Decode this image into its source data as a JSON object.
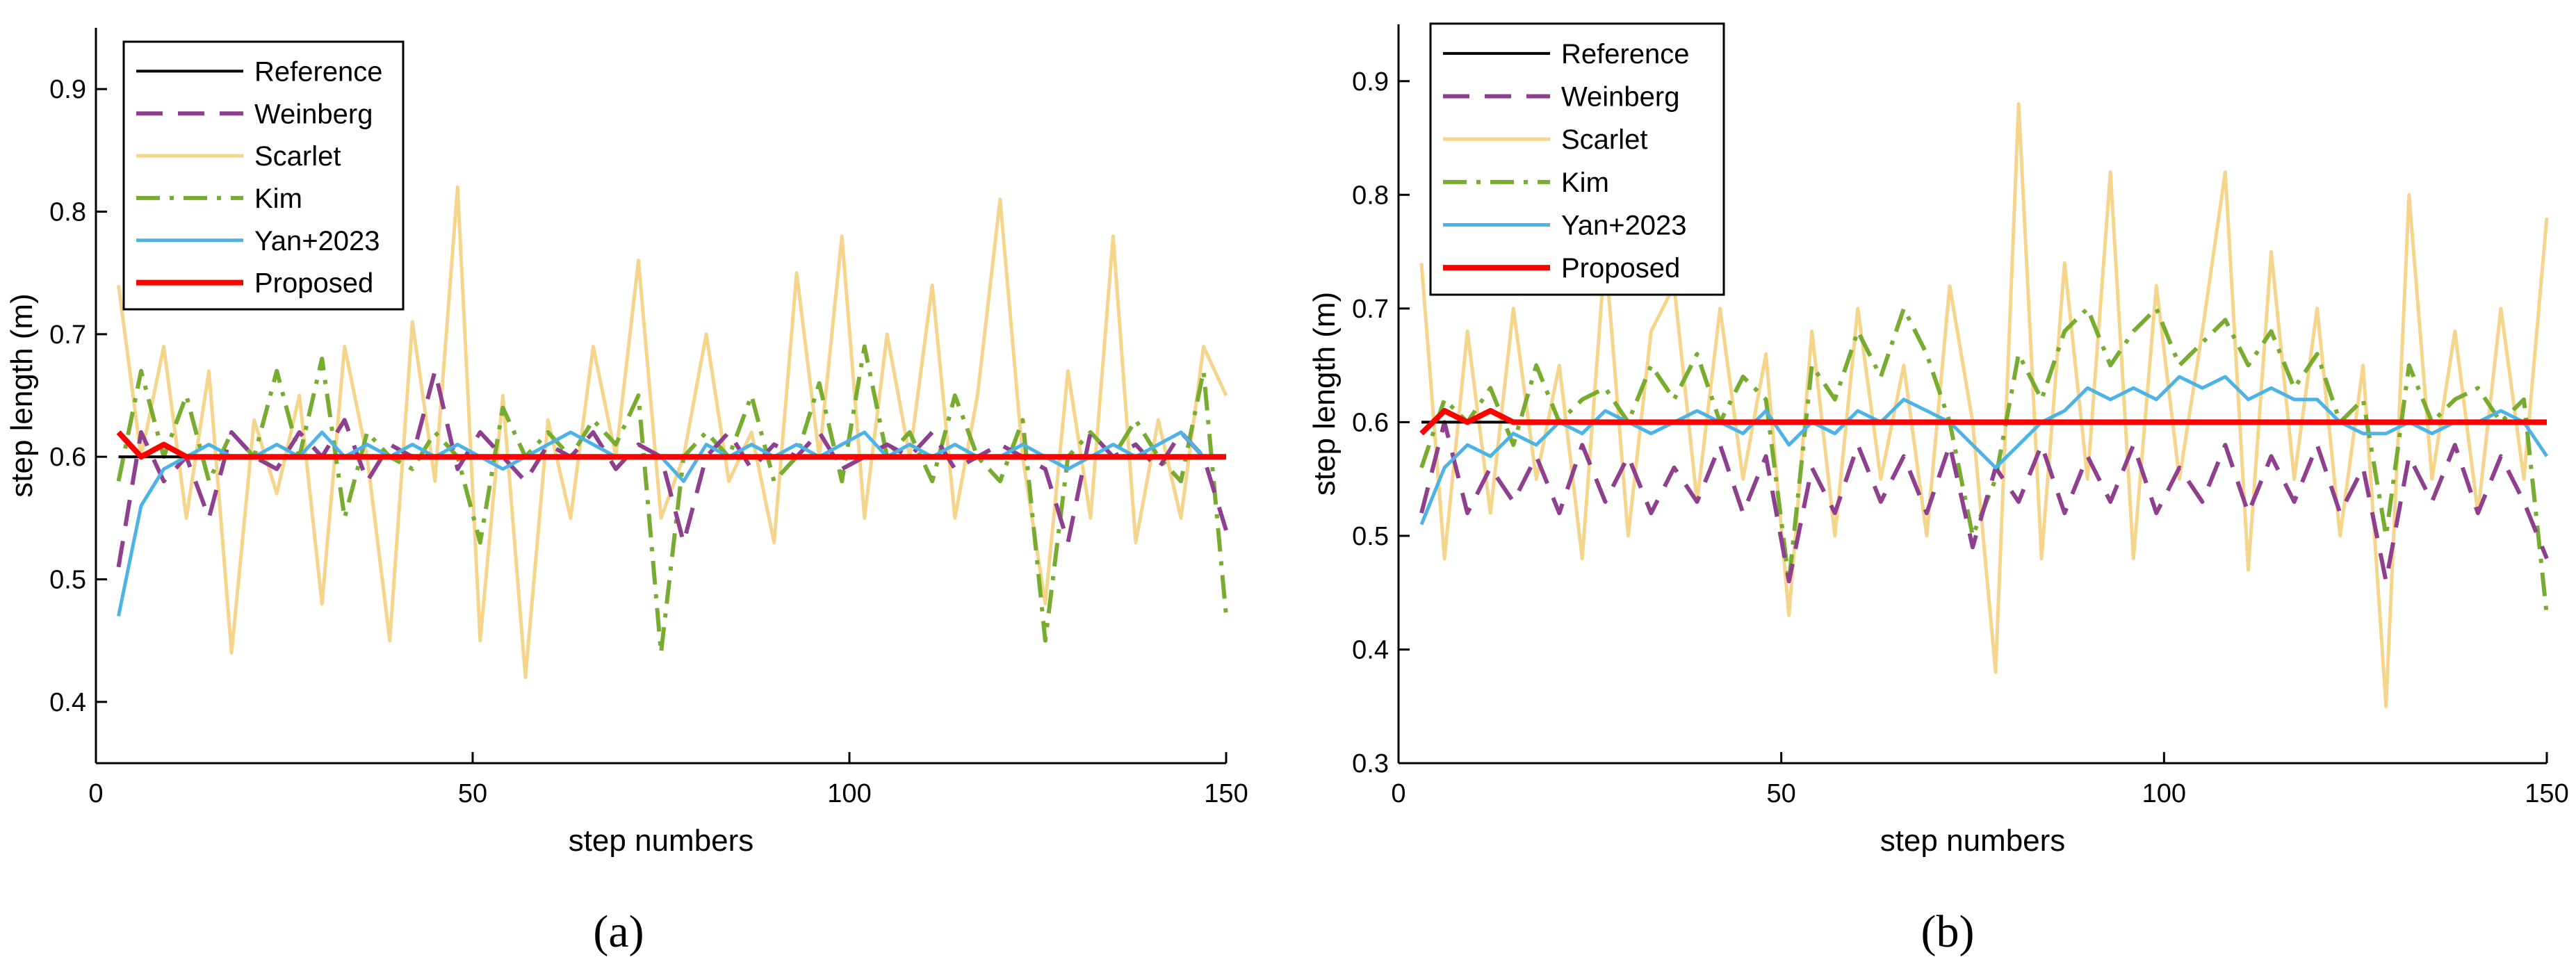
{
  "figure": {
    "panel_labels": [
      "(a)",
      "(b)"
    ]
  },
  "colors": {
    "Reference": "#000000",
    "Weinberg": "#8e3f8e",
    "Scarlet": "#f5d58b",
    "Kim": "#77ac30",
    "Yan+2023": "#4db3e6",
    "Proposed": "#ff0000"
  },
  "chart_data": [
    {
      "type": "line",
      "panel": "(a)",
      "title": "",
      "xlabel": "step numbers",
      "ylabel": "step length (m)",
      "xlim": [
        0,
        150
      ],
      "ylim": [
        0.35,
        0.95
      ],
      "xticks": [
        0,
        50,
        100,
        150
      ],
      "yticks": [
        0.4,
        0.5,
        0.6,
        0.7,
        0.8,
        0.9
      ],
      "legend_position": "top-left",
      "grid": false,
      "x": [
        3,
        6,
        9,
        12,
        15,
        18,
        21,
        24,
        27,
        30,
        33,
        36,
        39,
        42,
        45,
        48,
        51,
        54,
        57,
        60,
        63,
        66,
        69,
        72,
        75,
        78,
        81,
        84,
        87,
        90,
        93,
        96,
        99,
        102,
        105,
        108,
        111,
        114,
        117,
        120,
        123,
        126,
        129,
        132,
        135,
        138,
        141,
        144,
        147,
        150
      ],
      "series": [
        {
          "name": "Reference",
          "style": "solid",
          "values": [
            0.6,
            0.6,
            0.6,
            0.6,
            0.6,
            0.6,
            0.6,
            0.6,
            0.6,
            0.6,
            0.6,
            0.6,
            0.6,
            0.6,
            0.6,
            0.6,
            0.6,
            0.6,
            0.6,
            0.6,
            0.6,
            0.6,
            0.6,
            0.6,
            0.6,
            0.6,
            0.6,
            0.6,
            0.6,
            0.6,
            0.6,
            0.6,
            0.6,
            0.6,
            0.6,
            0.6,
            0.6,
            0.6,
            0.6,
            0.6,
            0.6,
            0.6,
            0.6,
            0.6,
            0.6,
            0.6,
            0.6,
            0.6,
            0.6,
            0.6
          ]
        },
        {
          "name": "Weinberg",
          "style": "dashed",
          "values": [
            0.51,
            0.62,
            0.58,
            0.6,
            0.55,
            0.62,
            0.6,
            0.59,
            0.62,
            0.6,
            0.63,
            0.58,
            0.61,
            0.6,
            0.67,
            0.59,
            0.62,
            0.6,
            0.58,
            0.61,
            0.6,
            0.62,
            0.59,
            0.61,
            0.6,
            0.53,
            0.6,
            0.62,
            0.59,
            0.61,
            0.6,
            0.62,
            0.59,
            0.6,
            0.61,
            0.6,
            0.62,
            0.59,
            0.6,
            0.61,
            0.6,
            0.59,
            0.53,
            0.62,
            0.6,
            0.61,
            0.59,
            0.62,
            0.6,
            0.54
          ]
        },
        {
          "name": "Scarlet",
          "style": "solid",
          "values": [
            0.74,
            0.6,
            0.69,
            0.55,
            0.67,
            0.44,
            0.63,
            0.57,
            0.65,
            0.48,
            0.69,
            0.6,
            0.45,
            0.71,
            0.58,
            0.82,
            0.45,
            0.65,
            0.42,
            0.63,
            0.55,
            0.69,
            0.6,
            0.76,
            0.55,
            0.6,
            0.7,
            0.58,
            0.62,
            0.53,
            0.75,
            0.6,
            0.78,
            0.55,
            0.7,
            0.6,
            0.74,
            0.55,
            0.65,
            0.81,
            0.6,
            0.48,
            0.67,
            0.55,
            0.78,
            0.53,
            0.63,
            0.55,
            0.69,
            0.65
          ]
        },
        {
          "name": "Kim",
          "style": "dashdot",
          "values": [
            0.58,
            0.67,
            0.6,
            0.65,
            0.58,
            0.62,
            0.6,
            0.67,
            0.6,
            0.68,
            0.55,
            0.62,
            0.6,
            0.59,
            0.62,
            0.6,
            0.53,
            0.64,
            0.6,
            0.62,
            0.6,
            0.63,
            0.61,
            0.65,
            0.44,
            0.6,
            0.62,
            0.6,
            0.65,
            0.58,
            0.6,
            0.66,
            0.58,
            0.69,
            0.6,
            0.62,
            0.58,
            0.65,
            0.6,
            0.58,
            0.63,
            0.45,
            0.6,
            0.62,
            0.6,
            0.63,
            0.6,
            0.58,
            0.67,
            0.47
          ]
        },
        {
          "name": "Yan+2023",
          "style": "solid",
          "values": [
            0.47,
            0.56,
            0.59,
            0.6,
            0.61,
            0.6,
            0.6,
            0.61,
            0.6,
            0.62,
            0.6,
            0.61,
            0.6,
            0.61,
            0.6,
            0.61,
            0.6,
            0.59,
            0.6,
            0.61,
            0.62,
            0.61,
            0.6,
            0.6,
            0.6,
            0.58,
            0.61,
            0.6,
            0.61,
            0.6,
            0.61,
            0.6,
            0.61,
            0.62,
            0.6,
            0.61,
            0.6,
            0.61,
            0.6,
            0.6,
            0.61,
            0.6,
            0.59,
            0.6,
            0.61,
            0.6,
            0.61,
            0.62,
            0.6,
            0.6
          ]
        },
        {
          "name": "Proposed",
          "style": "solid",
          "values": [
            0.62,
            0.6,
            0.61,
            0.6,
            0.6,
            0.6,
            0.6,
            0.6,
            0.6,
            0.6,
            0.6,
            0.6,
            0.6,
            0.6,
            0.6,
            0.6,
            0.6,
            0.6,
            0.6,
            0.6,
            0.6,
            0.6,
            0.6,
            0.6,
            0.6,
            0.6,
            0.6,
            0.6,
            0.6,
            0.6,
            0.6,
            0.6,
            0.6,
            0.6,
            0.6,
            0.6,
            0.6,
            0.6,
            0.6,
            0.6,
            0.6,
            0.6,
            0.6,
            0.6,
            0.6,
            0.6,
            0.6,
            0.6,
            0.6,
            0.6
          ]
        }
      ]
    },
    {
      "type": "line",
      "panel": "(b)",
      "title": "",
      "xlabel": "step numbers",
      "ylabel": "step length (m)",
      "xlim": [
        0,
        150
      ],
      "ylim": [
        0.3,
        0.95
      ],
      "xticks": [
        0,
        50,
        100,
        150
      ],
      "yticks": [
        0.3,
        0.4,
        0.5,
        0.6,
        0.7,
        0.8,
        0.9
      ],
      "legend_position": "top-left",
      "grid": false,
      "x": [
        3,
        6,
        9,
        12,
        15,
        18,
        21,
        24,
        27,
        30,
        33,
        36,
        39,
        42,
        45,
        48,
        51,
        54,
        57,
        60,
        63,
        66,
        69,
        72,
        75,
        78,
        81,
        84,
        87,
        90,
        93,
        96,
        99,
        102,
        105,
        108,
        111,
        114,
        117,
        120,
        123,
        126,
        129,
        132,
        135,
        138,
        141,
        144,
        147,
        150
      ],
      "series": [
        {
          "name": "Reference",
          "style": "solid",
          "values": [
            0.6,
            0.6,
            0.6,
            0.6,
            0.6,
            0.6,
            0.6,
            0.6,
            0.6,
            0.6,
            0.6,
            0.6,
            0.6,
            0.6,
            0.6,
            0.6,
            0.6,
            0.6,
            0.6,
            0.6,
            0.6,
            0.6,
            0.6,
            0.6,
            0.6,
            0.6,
            0.6,
            0.6,
            0.6,
            0.6,
            0.6,
            0.6,
            0.6,
            0.6,
            0.6,
            0.6,
            0.6,
            0.6,
            0.6,
            0.6,
            0.6,
            0.6,
            0.6,
            0.6,
            0.6,
            0.6,
            0.6,
            0.6,
            0.6,
            0.6
          ]
        },
        {
          "name": "Weinberg",
          "style": "dashed",
          "values": [
            0.52,
            0.6,
            0.52,
            0.56,
            0.53,
            0.57,
            0.52,
            0.58,
            0.53,
            0.57,
            0.52,
            0.56,
            0.53,
            0.58,
            0.52,
            0.57,
            0.46,
            0.56,
            0.52,
            0.58,
            0.53,
            0.57,
            0.52,
            0.58,
            0.49,
            0.56,
            0.53,
            0.58,
            0.52,
            0.57,
            0.53,
            0.58,
            0.52,
            0.56,
            0.53,
            0.58,
            0.52,
            0.57,
            0.53,
            0.58,
            0.52,
            0.56,
            0.46,
            0.57,
            0.53,
            0.58,
            0.52,
            0.57,
            0.53,
            0.48
          ]
        },
        {
          "name": "Scarlet",
          "style": "solid",
          "values": [
            0.74,
            0.48,
            0.68,
            0.52,
            0.7,
            0.55,
            0.65,
            0.48,
            0.75,
            0.5,
            0.68,
            0.72,
            0.53,
            0.7,
            0.55,
            0.66,
            0.43,
            0.68,
            0.5,
            0.7,
            0.55,
            0.65,
            0.5,
            0.72,
            0.6,
            0.38,
            0.88,
            0.48,
            0.74,
            0.55,
            0.82,
            0.48,
            0.72,
            0.55,
            0.68,
            0.82,
            0.47,
            0.75,
            0.55,
            0.7,
            0.5,
            0.65,
            0.35,
            0.8,
            0.55,
            0.68,
            0.52,
            0.7,
            0.55,
            0.78
          ]
        },
        {
          "name": "Kim",
          "style": "dashdot",
          "values": [
            0.56,
            0.62,
            0.6,
            0.63,
            0.58,
            0.65,
            0.6,
            0.62,
            0.63,
            0.6,
            0.65,
            0.62,
            0.66,
            0.6,
            0.64,
            0.62,
            0.46,
            0.65,
            0.62,
            0.68,
            0.64,
            0.7,
            0.66,
            0.6,
            0.5,
            0.55,
            0.66,
            0.62,
            0.68,
            0.7,
            0.65,
            0.68,
            0.7,
            0.65,
            0.67,
            0.69,
            0.65,
            0.68,
            0.63,
            0.66,
            0.6,
            0.62,
            0.5,
            0.65,
            0.6,
            0.62,
            0.63,
            0.6,
            0.62,
            0.43
          ]
        },
        {
          "name": "Yan+2023",
          "style": "solid",
          "values": [
            0.51,
            0.56,
            0.58,
            0.57,
            0.59,
            0.58,
            0.6,
            0.59,
            0.61,
            0.6,
            0.59,
            0.6,
            0.61,
            0.6,
            0.59,
            0.61,
            0.58,
            0.6,
            0.59,
            0.61,
            0.6,
            0.62,
            0.61,
            0.6,
            0.58,
            0.56,
            0.58,
            0.6,
            0.61,
            0.63,
            0.62,
            0.63,
            0.62,
            0.64,
            0.63,
            0.64,
            0.62,
            0.63,
            0.62,
            0.62,
            0.6,
            0.59,
            0.59,
            0.6,
            0.59,
            0.6,
            0.6,
            0.61,
            0.6,
            0.57
          ]
        },
        {
          "name": "Proposed",
          "style": "solid",
          "values": [
            0.59,
            0.61,
            0.6,
            0.61,
            0.6,
            0.6,
            0.6,
            0.6,
            0.6,
            0.6,
            0.6,
            0.6,
            0.6,
            0.6,
            0.6,
            0.6,
            0.6,
            0.6,
            0.6,
            0.6,
            0.6,
            0.6,
            0.6,
            0.6,
            0.6,
            0.6,
            0.6,
            0.6,
            0.6,
            0.6,
            0.6,
            0.6,
            0.6,
            0.6,
            0.6,
            0.6,
            0.6,
            0.6,
            0.6,
            0.6,
            0.6,
            0.6,
            0.6,
            0.6,
            0.6,
            0.6,
            0.6,
            0.6,
            0.6,
            0.6
          ]
        }
      ]
    }
  ]
}
